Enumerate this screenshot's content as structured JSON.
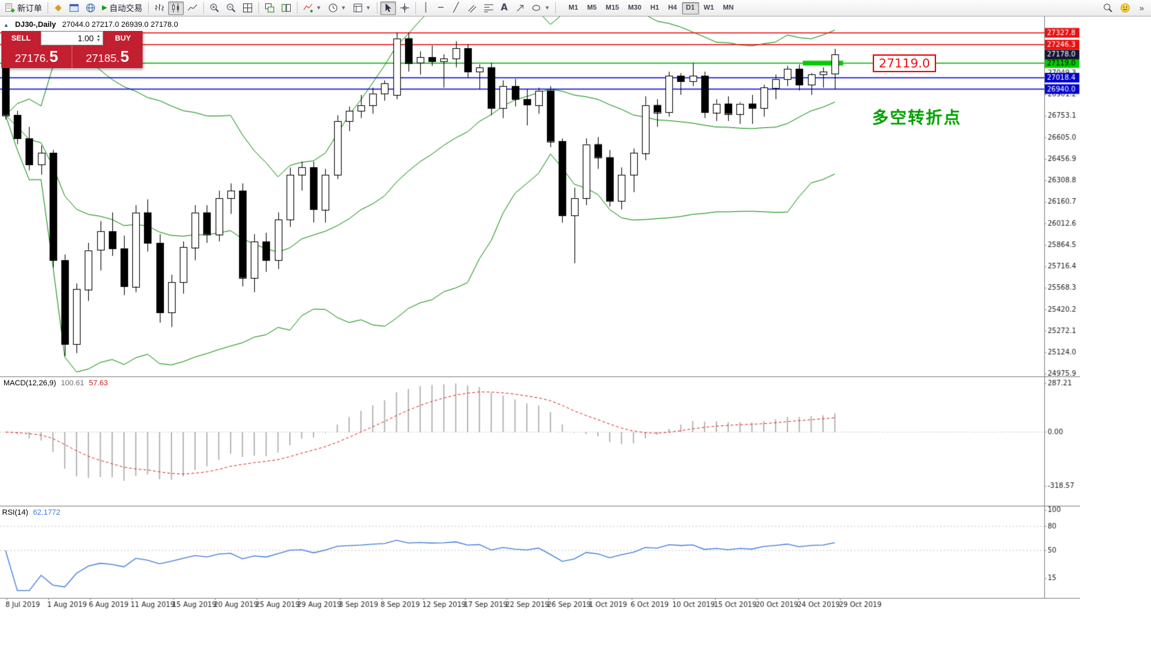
{
  "toolbar": {
    "new_order": "新订单",
    "auto_trading": "自动交易",
    "timeframes": [
      "M1",
      "M5",
      "M15",
      "M30",
      "H1",
      "H4",
      "D1",
      "W1",
      "MN"
    ],
    "active_timeframe": "D1",
    "overflow": "»"
  },
  "chart": {
    "symbol_period": "DJ30-,Daily",
    "ohlc_text": "27044.0 27217.0 26939.0 27178.0",
    "callout_text": "27119.0",
    "note_text": "多空转折点",
    "note_color": "#00a000",
    "lines": [
      {
        "price": 27327.8,
        "color": "#e81010",
        "badge_bg": "#e81010",
        "badge_fg": "#ffffff"
      },
      {
        "price": 27246.3,
        "color": "#e81010",
        "badge_bg": "#e81010",
        "badge_fg": "#ffffff"
      },
      {
        "price": 27119.0,
        "color": "#00b000",
        "badge_bg": "#00cc00",
        "badge_fg": "#000000"
      },
      {
        "price": 27018.4,
        "color": "#0000e8",
        "badge_bg": "#0000cc",
        "badge_fg": "#ffffff"
      },
      {
        "price": 26940.0,
        "color": "#0000e8",
        "badge_bg": "#0000cc",
        "badge_fg": "#ffffff"
      }
    ],
    "current_price": {
      "value": 27178.0,
      "badge_bg": "#141432",
      "badge_fg": "#ffffff"
    },
    "scale_labels": [
      27049.3,
      26901.2,
      26753.1,
      26605.0,
      26456.9,
      26308.8,
      26160.7,
      26012.6,
      25864.5,
      25716.4,
      25568.3,
      25420.2,
      25272.1,
      25124.0,
      24975.9
    ],
    "highlight": {
      "price": 27119.0,
      "from_bar": 67.3,
      "to_bar": 70.7,
      "color": "#00cc00",
      "thickness": 7
    }
  },
  "quote_panel": {
    "sell_label": "SELL",
    "buy_label": "BUY",
    "lot": "1.00",
    "sell_price": "27176.",
    "sell_big": "5",
    "buy_price": "27185.",
    "buy_big": "5"
  },
  "macd": {
    "name": "MACD(12,26,9)",
    "value": "100.61",
    "signal": "57.63",
    "scale_labels": [
      287.21,
      0.0,
      -318.57
    ]
  },
  "rsi": {
    "name": "RSI(14)",
    "value": "62.1772",
    "scale_labels": [
      100,
      80,
      50,
      15
    ],
    "levels": [
      80,
      50
    ]
  },
  "chart_data": {
    "type": "candlestick",
    "symbol": "DJ30-",
    "timeframe": "Daily",
    "ohlc_current": {
      "open": 27044.0,
      "high": 27217.0,
      "low": 26939.0,
      "close": 27178.0
    },
    "price_axis_range": [
      24960,
      27440
    ],
    "x_labels": [
      "8 Jul 2019",
      "1 Aug 2019",
      "6 Aug 2019",
      "11 Aug 2019",
      "15 Aug 2019",
      "20 Aug 2019",
      "25 Aug 2019",
      "29 Aug 2019",
      "3 Sep 2019",
      "8 Sep 2019",
      "12 Sep 2019",
      "17 Sep 2019",
      "22 Sep 2019",
      "26 Sep 2019",
      "1 Oct 2019",
      "6 Oct 2019",
      "10 Oct 2019",
      "15 Oct 2019",
      "20 Oct 2019",
      "24 Oct 2019",
      "29 Oct 2019"
    ],
    "overlays": [
      {
        "name": "Bollinger Bands",
        "period": 20,
        "deviation": 2,
        "color": "#008800"
      }
    ],
    "panes": [
      {
        "name": "MACD",
        "params": [
          12,
          26,
          9
        ],
        "last_values": [
          100.61,
          57.63
        ],
        "range": [
          -318.57,
          287.21
        ]
      },
      {
        "name": "RSI",
        "period": 14,
        "last_value": 62.1772
      }
    ],
    "candles": [
      [
        27100,
        27120,
        26730,
        26760
      ],
      [
        26760,
        26790,
        26560,
        26600
      ],
      [
        26600,
        26680,
        26380,
        26420
      ],
      [
        26420,
        26550,
        26350,
        26500
      ],
      [
        26500,
        26520,
        25710,
        25760
      ],
      [
        25760,
        25800,
        25100,
        25180
      ],
      [
        25180,
        25600,
        25120,
        25560
      ],
      [
        25560,
        25880,
        25480,
        25830
      ],
      [
        25830,
        26030,
        25690,
        25960
      ],
      [
        25960,
        26090,
        25790,
        25840
      ],
      [
        25840,
        25930,
        25520,
        25580
      ],
      [
        25580,
        26140,
        25540,
        26090
      ],
      [
        26090,
        26180,
        25820,
        25880
      ],
      [
        25880,
        25940,
        25330,
        25400
      ],
      [
        25400,
        25660,
        25300,
        25610
      ],
      [
        25610,
        25890,
        25530,
        25850
      ],
      [
        25850,
        26140,
        25760,
        26090
      ],
      [
        26090,
        26140,
        25880,
        25940
      ],
      [
        25940,
        26240,
        25890,
        26190
      ],
      [
        26190,
        26290,
        26080,
        26240
      ],
      [
        26240,
        26290,
        25580,
        25640
      ],
      [
        25640,
        25940,
        25540,
        25890
      ],
      [
        25890,
        25950,
        25680,
        25760
      ],
      [
        25760,
        26090,
        25700,
        26040
      ],
      [
        26040,
        26400,
        25990,
        26350
      ],
      [
        26350,
        26440,
        26240,
        26400
      ],
      [
        26400,
        26440,
        26020,
        26110
      ],
      [
        26110,
        26390,
        26020,
        26350
      ],
      [
        26350,
        26760,
        26320,
        26720
      ],
      [
        26720,
        26820,
        26650,
        26790
      ],
      [
        26790,
        26900,
        26740,
        26830
      ],
      [
        26830,
        26950,
        26770,
        26910
      ],
      [
        26910,
        27000,
        26860,
        26980
      ],
      [
        26900,
        27330,
        26870,
        27290
      ],
      [
        27290,
        27330,
        27060,
        27120
      ],
      [
        27120,
        27200,
        27040,
        27160
      ],
      [
        27160,
        27240,
        27100,
        27130
      ],
      [
        27130,
        27180,
        26950,
        27150
      ],
      [
        27150,
        27270,
        27090,
        27220
      ],
      [
        27220,
        27250,
        27020,
        27060
      ],
      [
        27060,
        27110,
        26940,
        27090
      ],
      [
        27090,
        27120,
        26760,
        26810
      ],
      [
        26810,
        27000,
        26740,
        26960
      ],
      [
        26960,
        27010,
        26820,
        26870
      ],
      [
        26870,
        26940,
        26690,
        26830
      ],
      [
        26830,
        26950,
        26770,
        26930
      ],
      [
        26930,
        26960,
        26540,
        26580
      ],
      [
        26580,
        26600,
        26020,
        26070
      ],
      [
        26070,
        26260,
        25740,
        26190
      ],
      [
        26190,
        26600,
        26140,
        26560
      ],
      [
        26560,
        26610,
        26390,
        26470
      ],
      [
        26470,
        26520,
        26130,
        26170
      ],
      [
        26170,
        26400,
        26110,
        26350
      ],
      [
        26350,
        26530,
        26230,
        26500
      ],
      [
        26500,
        26890,
        26450,
        26830
      ],
      [
        26830,
        26870,
        26680,
        26780
      ],
      [
        26780,
        27060,
        26750,
        27030
      ],
      [
        27030,
        27050,
        26900,
        26990
      ],
      [
        26990,
        27120,
        26960,
        27030
      ],
      [
        27030,
        27060,
        26740,
        26780
      ],
      [
        26780,
        26870,
        26720,
        26840
      ],
      [
        26840,
        26890,
        26720,
        26770
      ],
      [
        26770,
        26850,
        26700,
        26840
      ],
      [
        26840,
        26900,
        26700,
        26810
      ],
      [
        26810,
        26970,
        26750,
        26950
      ],
      [
        26950,
        27040,
        26870,
        27010
      ],
      [
        27010,
        27100,
        26960,
        27080
      ],
      [
        27080,
        27110,
        26930,
        26970
      ],
      [
        26970,
        27050,
        26900,
        27040
      ],
      [
        27040,
        27090,
        26950,
        27060
      ],
      [
        27044,
        27217,
        26939,
        27178
      ]
    ]
  }
}
